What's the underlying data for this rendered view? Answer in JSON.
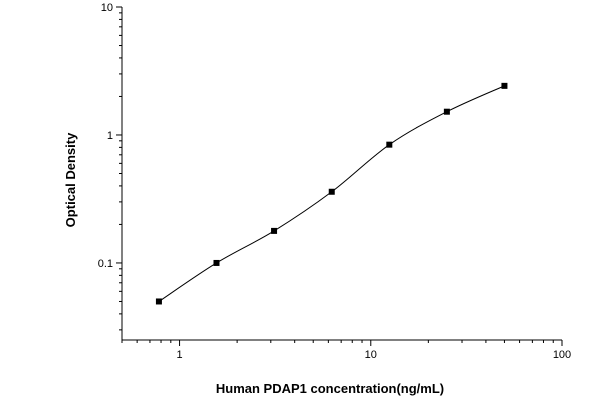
{
  "chart_data": {
    "type": "scatter",
    "xlabel": "Human PDAP1 concentration(ng/mL)",
    "ylabel": "Optical Density",
    "xscale": "log",
    "yscale": "log",
    "xlim": [
      0.5,
      100
    ],
    "ylim": [
      0.025,
      10
    ],
    "x_ticks": [
      {
        "value": 1,
        "label": "1"
      },
      {
        "value": 10,
        "label": "10"
      },
      {
        "value": 100,
        "label": "100"
      }
    ],
    "y_ticks": [
      {
        "value": 0.1,
        "label": "0.1"
      },
      {
        "value": 1,
        "label": "1"
      },
      {
        "value": 10,
        "label": "10"
      }
    ],
    "grid": false,
    "legend": "none",
    "series": [
      {
        "x": [
          0.78,
          1.56,
          3.12,
          6.25,
          12.5,
          25,
          50
        ],
        "y": [
          0.05,
          0.1,
          0.178,
          0.36,
          0.84,
          1.52,
          2.42
        ],
        "marker": "square",
        "fit_curve": true
      }
    ]
  }
}
